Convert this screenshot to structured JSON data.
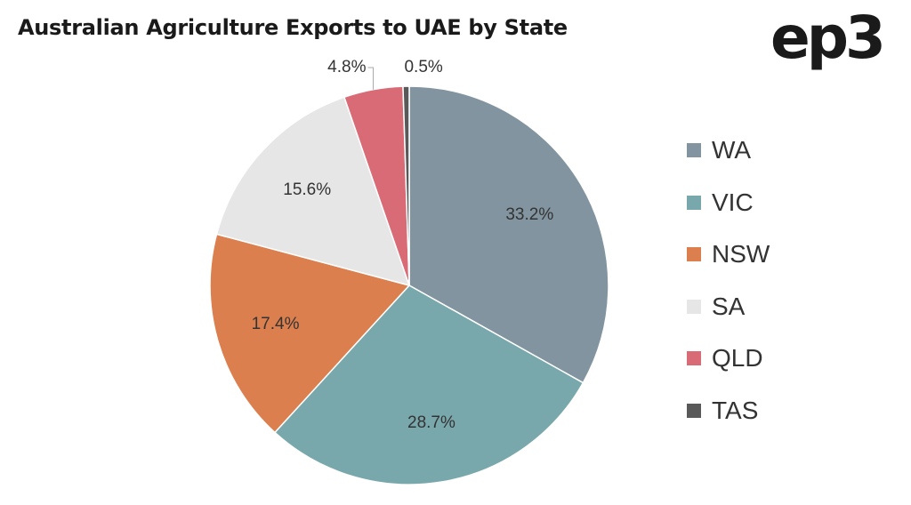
{
  "title": "Australian Agriculture Exports to UAE by State",
  "logo": "ep3",
  "chart_data": {
    "type": "pie",
    "title": "Australian Agriculture Exports to UAE by State",
    "legend_position": "right",
    "slices": [
      {
        "name": "WA",
        "value": 33.2,
        "label": "33.2%",
        "color": "#8294a0"
      },
      {
        "name": "VIC",
        "value": 28.7,
        "label": "28.7%",
        "color": "#79a8ac"
      },
      {
        "name": "NSW",
        "value": 17.4,
        "label": "17.4%",
        "color": "#dc7f4e"
      },
      {
        "name": "SA",
        "value": 15.6,
        "label": "15.6%",
        "color": "#e6e6e6"
      },
      {
        "name": "QLD",
        "value": 4.8,
        "label": "4.8%",
        "color": "#d96b76"
      },
      {
        "name": "TAS",
        "value": 0.5,
        "label": "0.5%",
        "color": "#595959"
      }
    ]
  }
}
